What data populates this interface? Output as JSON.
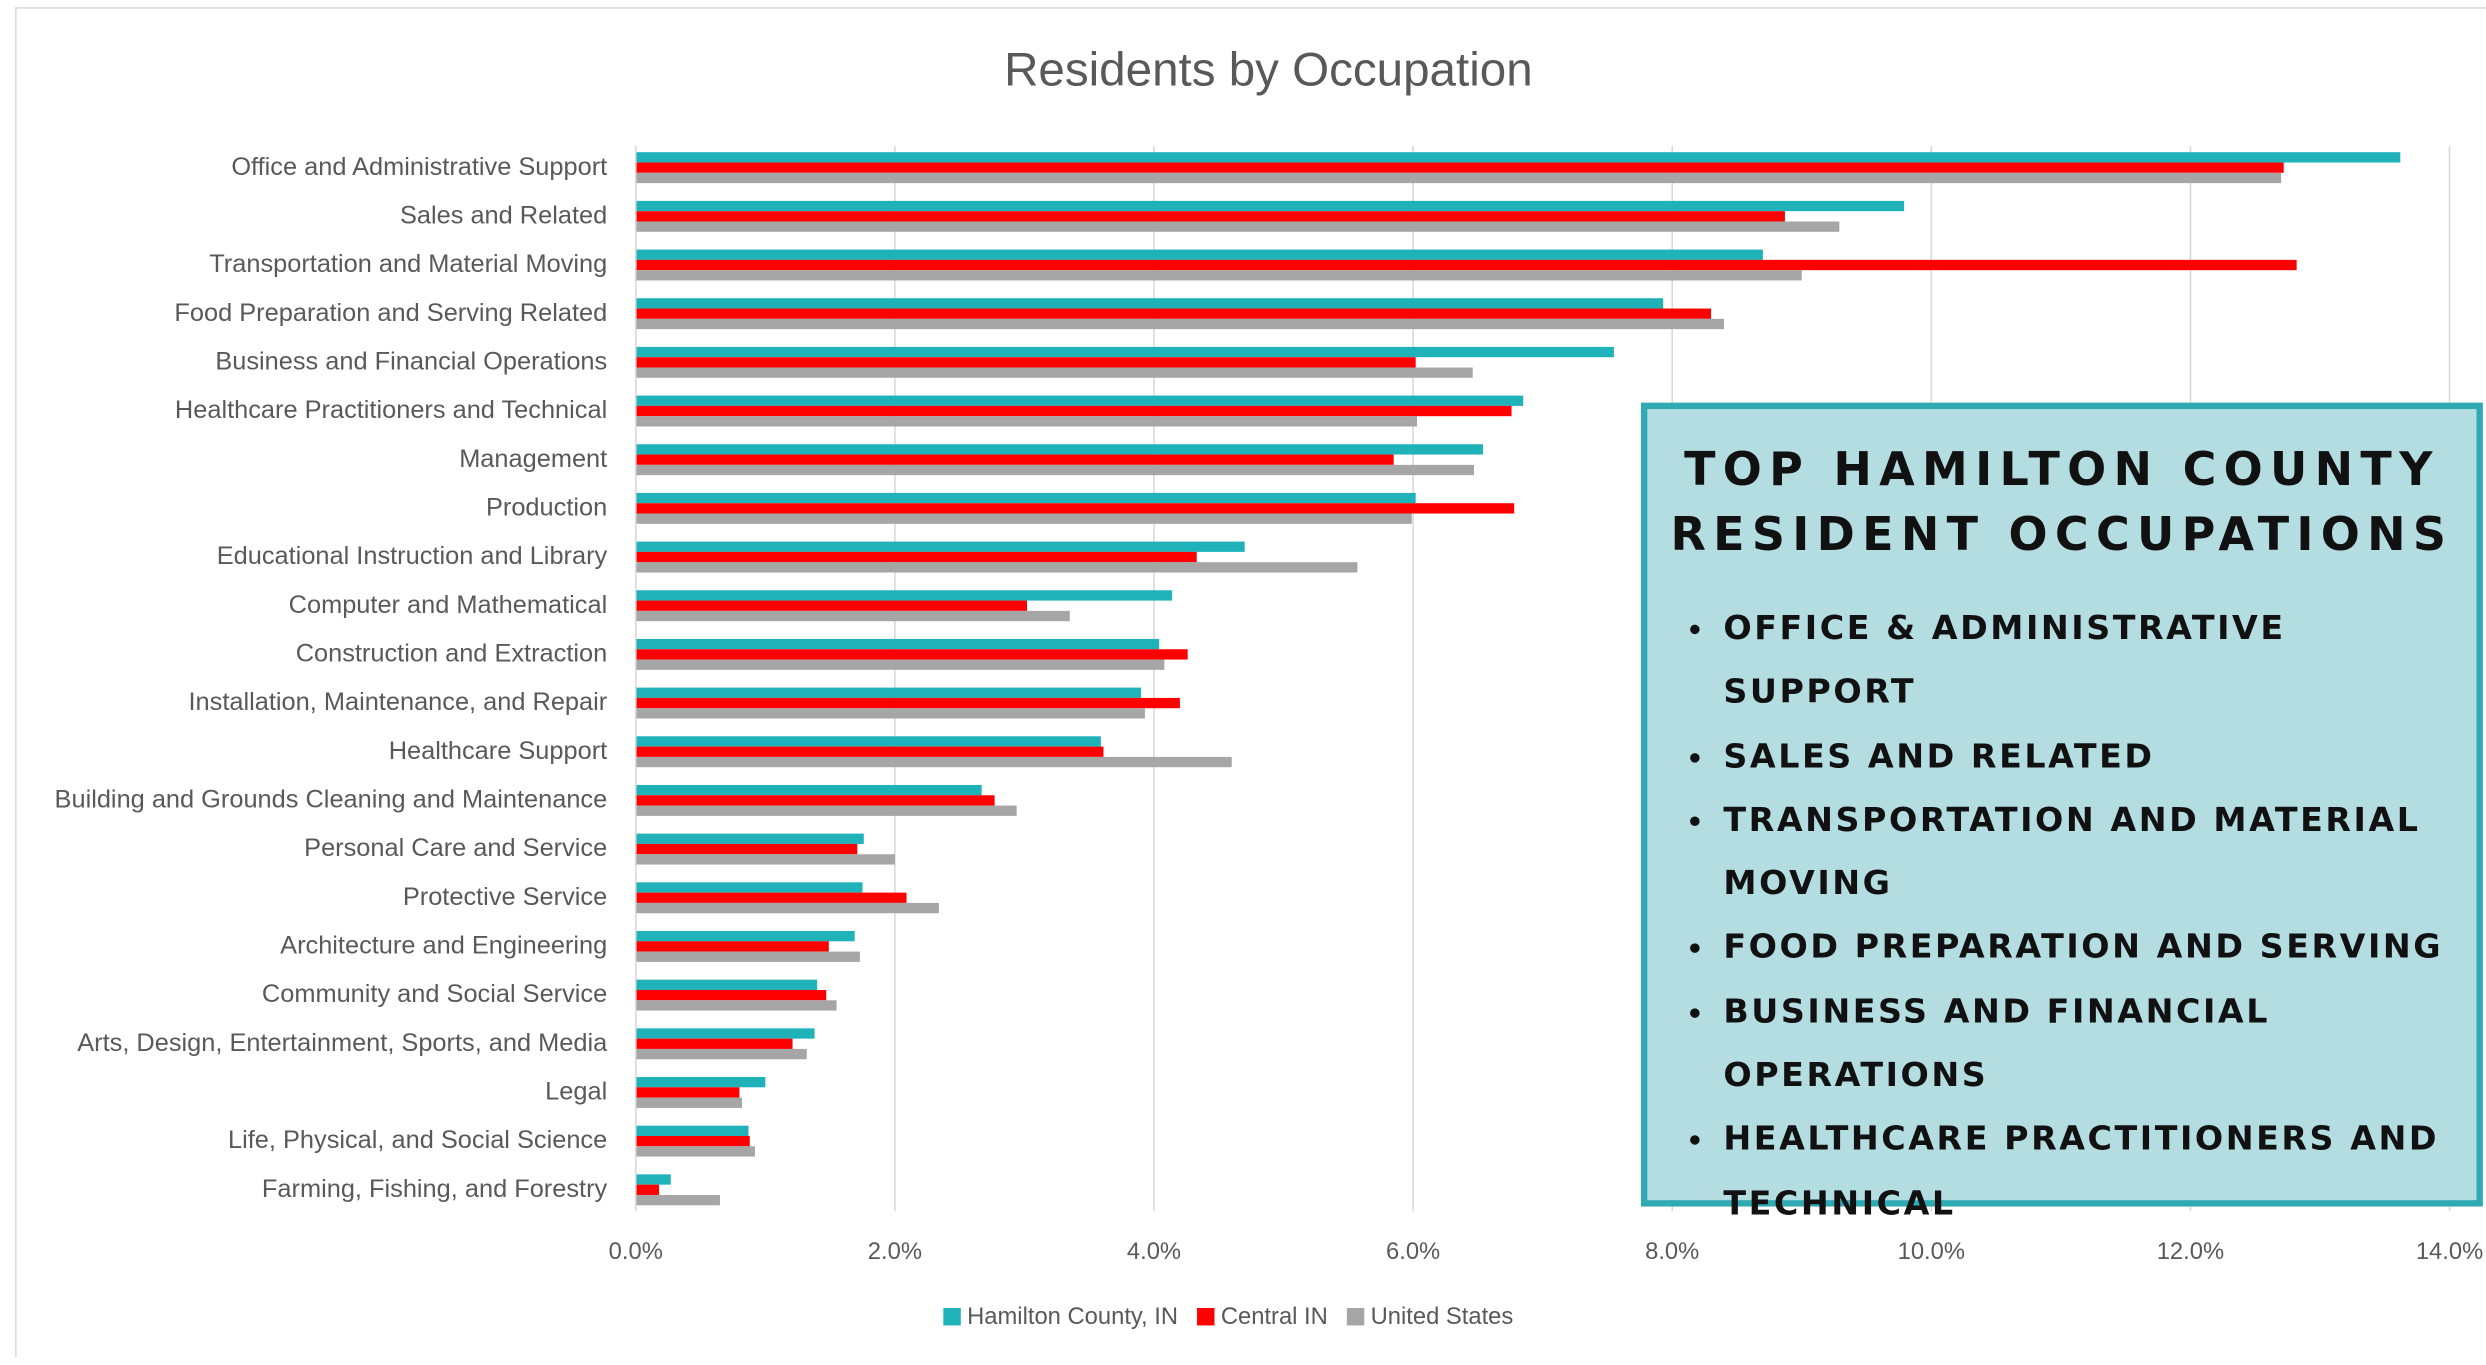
{
  "chart_data": {
    "type": "bar",
    "orientation": "horizontal",
    "title": "Residents by Occupation",
    "categories": [
      "Office and Administrative Support",
      "Sales and Related",
      "Transportation and Material Moving",
      "Food Preparation and Serving Related",
      "Business and Financial Operations",
      "Healthcare Practitioners and Technical",
      "Management",
      "Production",
      "Educational Instruction and Library",
      "Computer and Mathematical",
      "Construction and Extraction",
      "Installation, Maintenance, and Repair",
      "Healthcare Support",
      "Building and Grounds Cleaning and Maintenance",
      "Personal Care and Service",
      "Protective Service",
      "Architecture and Engineering",
      "Community and Social Service",
      "Arts, Design, Entertainment, Sports, and Media",
      "Legal",
      "Life, Physical, and Social Science",
      "Farming, Fishing, and Forestry"
    ],
    "series": [
      {
        "name": "Hamilton County, IN",
        "color": "#1fb2b8",
        "values": [
          13.62,
          9.79,
          8.7,
          7.93,
          7.55,
          6.85,
          6.54,
          6.02,
          4.7,
          4.14,
          4.04,
          3.9,
          3.59,
          2.67,
          1.76,
          1.75,
          1.69,
          1.4,
          1.38,
          1.0,
          0.87,
          0.27
        ]
      },
      {
        "name": "Central IN",
        "color": "#ff0000",
        "values": [
          12.72,
          8.87,
          12.82,
          8.3,
          6.02,
          6.76,
          5.85,
          6.78,
          4.33,
          3.02,
          4.26,
          4.2,
          3.61,
          2.77,
          1.71,
          2.09,
          1.49,
          1.47,
          1.21,
          0.8,
          0.88,
          0.18
        ]
      },
      {
        "name": "United States",
        "color": "#a6a6a6",
        "values": [
          12.7,
          9.29,
          9.0,
          8.4,
          6.46,
          6.03,
          6.47,
          5.99,
          5.57,
          3.35,
          4.08,
          3.93,
          4.6,
          2.94,
          2.0,
          2.34,
          1.73,
          1.55,
          1.32,
          0.82,
          0.92,
          0.65
        ]
      }
    ],
    "xlim": [
      0,
      14
    ],
    "xticks": [
      {
        "value": 0,
        "label": "0.0%"
      },
      {
        "value": 2,
        "label": "2.0%"
      },
      {
        "value": 4,
        "label": "4.0%"
      },
      {
        "value": 6,
        "label": "6.0%"
      },
      {
        "value": 8,
        "label": "8.0%"
      },
      {
        "value": 10,
        "label": "10.0%"
      },
      {
        "value": 12,
        "label": "12.0%"
      },
      {
        "value": 14,
        "label": "14.0%"
      }
    ],
    "grid": true,
    "legend": "bottom"
  },
  "callout": {
    "title_lines": [
      "TOP HAMILTON COUNTY",
      "RESIDENT OCCUPATIONS"
    ],
    "items": [
      "OFFICE & ADMINISTRATIVE SUPPORT",
      "SALES AND RELATED",
      "TRANSPORTATION AND MATERIAL MOVING",
      "FOOD PREPARATION AND SERVING",
      "BUSINESS AND FINANCIAL OPERATIONS",
      "HEALTHCARE PRACTITIONERS AND TECHNICAL"
    ]
  }
}
